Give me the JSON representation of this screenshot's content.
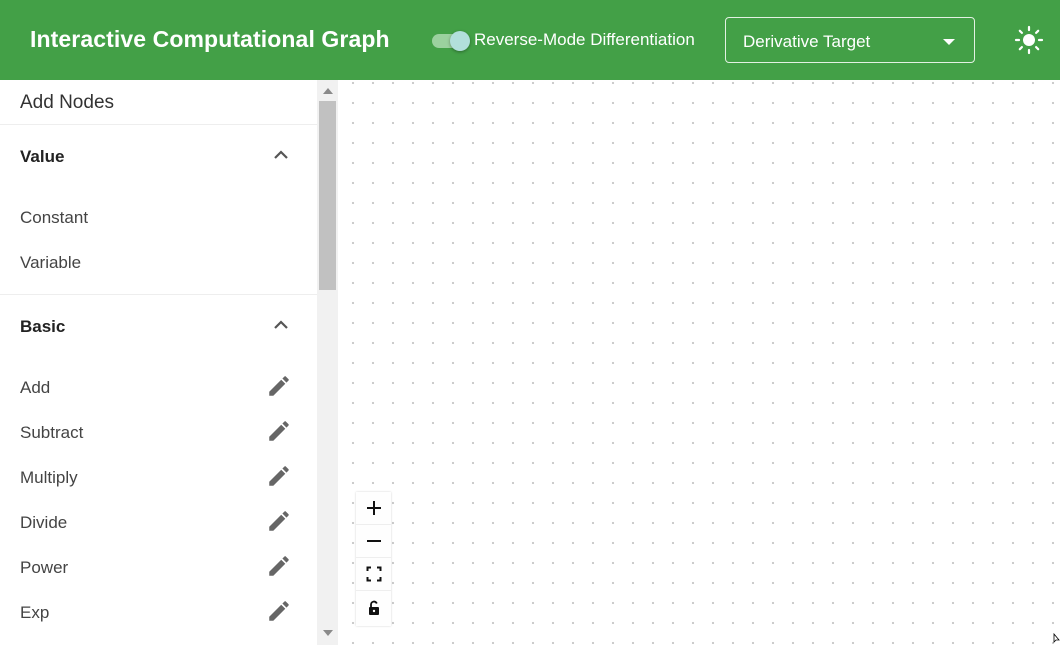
{
  "app": {
    "title": "Interactive Computational Graph",
    "reverse_mode": {
      "label": "Reverse-Mode Differentiation",
      "checked": true
    },
    "derivative_target": {
      "value": "Derivative Target"
    },
    "theme_icon": "sun-icon",
    "colors": {
      "appbar": "#43a047",
      "canvas_dots": "#c9c9c9"
    }
  },
  "sidebar": {
    "title": "Add Nodes",
    "sections": [
      {
        "title": "Value",
        "expanded": true,
        "items": [
          "Constant",
          "Variable"
        ]
      },
      {
        "title": "Basic",
        "expanded": true,
        "items": [
          "Add",
          "Subtract",
          "Multiply",
          "Divide",
          "Power",
          "Exp"
        ]
      }
    ],
    "item_action_icon": "pencil-icon"
  },
  "canvas": {
    "controls": [
      "zoom-in-icon",
      "zoom-out-icon",
      "fit-view-icon",
      "lock-icon"
    ]
  }
}
